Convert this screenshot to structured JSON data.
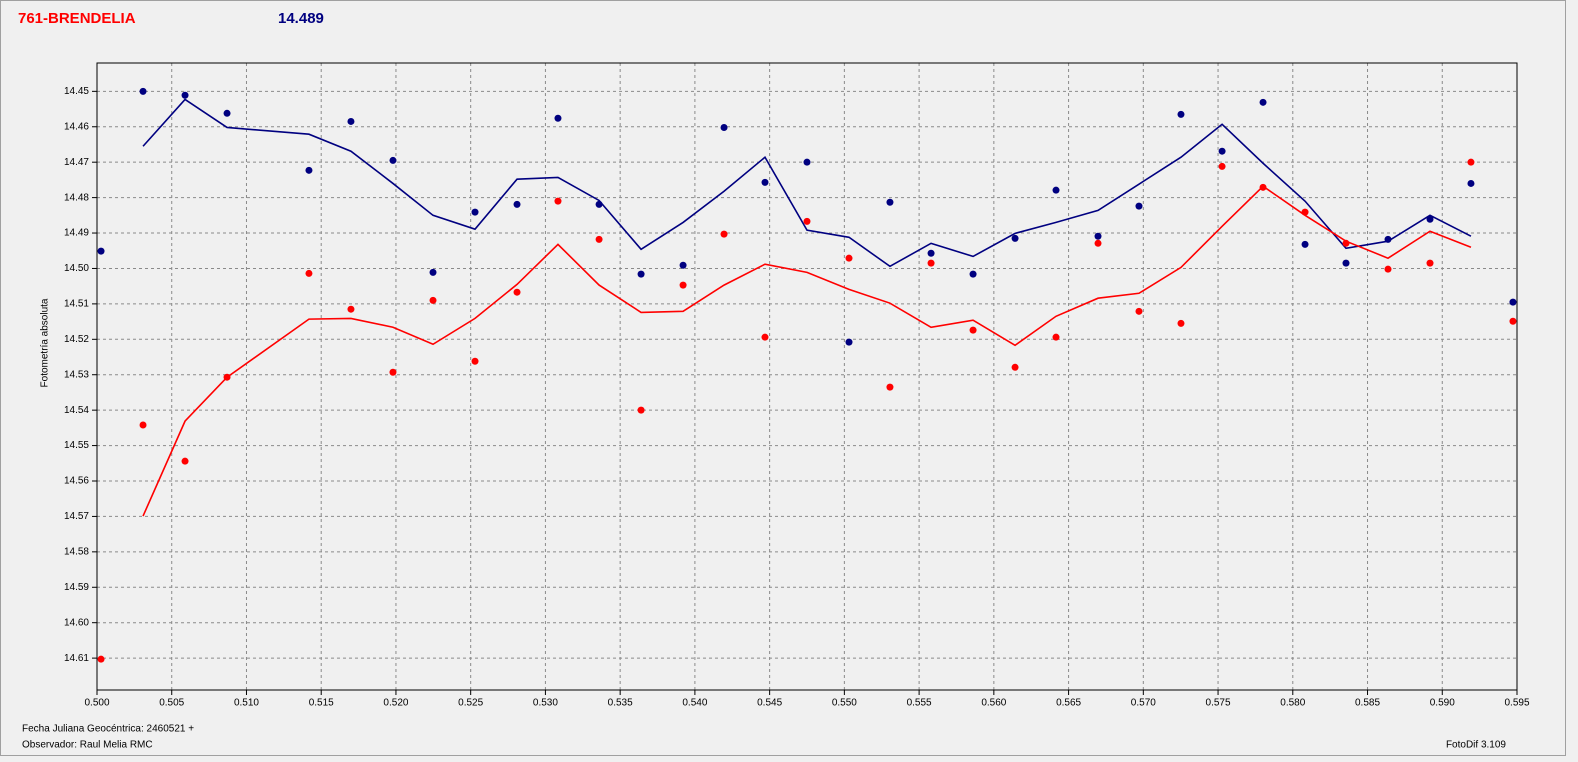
{
  "chart_data": {
    "type": "scatter",
    "title": "761-BRENDELIA",
    "subtitle": "14.489",
    "y_label": "Fotometría absoluta",
    "x_label": "Fecha Juliana Geocéntrica: 2460521 +",
    "observer": "Observador: Raul Melia RMC",
    "software": "FotoDif 3.109",
    "grid": true,
    "xlim": [
      0.5,
      0.595
    ],
    "ylim": [
      14.619,
      14.442
    ],
    "xticks": [
      {
        "value": 0.5,
        "label": "0.500"
      },
      0.505,
      {
        "value": 0.51,
        "label": "0.510"
      },
      0.515,
      {
        "value": 0.52,
        "label": "0.520"
      },
      0.525,
      {
        "value": 0.53,
        "label": "0.530"
      },
      0.535,
      {
        "value": 0.54,
        "label": "0.540"
      },
      0.545,
      {
        "value": 0.55,
        "label": "0.550"
      },
      0.555,
      {
        "value": 0.56,
        "label": "0.560"
      },
      0.565,
      {
        "value": 0.57,
        "label": "0.570"
      },
      0.575,
      {
        "value": 0.58,
        "label": "0.580"
      },
      0.585,
      {
        "value": 0.59,
        "label": "0.590"
      },
      0.595
    ],
    "yticks": [
      14.45,
      14.46,
      14.47,
      14.48,
      14.49,
      {
        "value": 14.5,
        "label": "14.50"
      },
      14.51,
      14.52,
      14.53,
      14.54,
      14.55,
      14.56,
      14.57,
      14.58,
      14.59,
      {
        "value": 14.6,
        "label": "14.60"
      },
      14.61
    ],
    "x": [
      0.50027,
      0.50308,
      0.50589,
      0.5087,
      0.51418,
      0.51699,
      0.5198,
      0.52248,
      0.52529,
      0.5281,
      0.53084,
      0.53359,
      0.5364,
      0.53921,
      0.54195,
      0.54469,
      0.5475,
      0.55031,
      0.55305,
      0.5558,
      0.55861,
      0.56142,
      0.56416,
      0.56697,
      0.56971,
      0.57252,
      0.57527,
      0.57801,
      0.58082,
      0.58356,
      0.58637,
      0.58918,
      0.59192,
      0.59473
    ],
    "series": [
      {
        "mode": "markers",
        "color": "#000080",
        "values": [
          14.4951,
          14.45,
          14.4511,
          14.4562,
          14.4723,
          14.4585,
          14.4695,
          14.5011,
          14.4841,
          14.4819,
          14.4576,
          14.4819,
          14.5016,
          14.4991,
          14.4602,
          14.4757,
          14.47,
          14.5208,
          14.4813,
          14.4957,
          14.5016,
          14.4915,
          14.4779,
          14.4909,
          14.4824,
          14.4565,
          14.4669,
          14.4531,
          14.4932,
          14.4985,
          14.4918,
          14.4861,
          14.476,
          14.5095
        ]
      },
      {
        "mode": "markers",
        "color": "#ff0000",
        "values": [
          14.6103,
          14.5442,
          14.5544,
          14.5307,
          14.5014,
          14.5115,
          14.5293,
          14.509,
          14.5262,
          14.5067,
          14.481,
          14.4918,
          14.54,
          14.5047,
          14.4903,
          14.5194,
          14.4867,
          14.4971,
          14.5335,
          14.4985,
          14.5174,
          14.5279,
          14.5194,
          14.4929,
          14.5121,
          14.5155,
          14.4712,
          14.4771,
          14.4841,
          14.4929,
          14.5002,
          14.4985,
          14.47,
          14.5149
        ]
      },
      {
        "mode": "line",
        "color": "#000080",
        "values": [
          null,
          14.4655,
          14.4523,
          14.4602,
          14.4621,
          14.4669,
          14.476,
          14.485,
          14.4889,
          14.4748,
          14.4743,
          14.4808,
          14.4946,
          14.487,
          14.4782,
          14.4686,
          14.4892,
          14.4912,
          14.4994,
          14.4929,
          14.4966,
          14.4901,
          14.487,
          14.4836,
          14.4762,
          14.4686,
          14.4593,
          14.4703,
          14.481,
          14.4943,
          14.4923,
          14.485,
          14.4909,
          null
        ]
      },
      {
        "mode": "line",
        "color": "#ff0000",
        "values": [
          null,
          14.5699,
          14.5431,
          14.5307,
          14.5143,
          14.5141,
          14.5166,
          14.5214,
          14.5141,
          14.5045,
          14.4932,
          14.5047,
          14.5124,
          14.5121,
          14.5047,
          14.4988,
          14.5011,
          14.5059,
          14.5098,
          14.5166,
          14.5146,
          14.5217,
          14.5135,
          14.5084,
          14.507,
          14.4997,
          14.4881,
          14.4768,
          14.485,
          14.4923,
          14.4971,
          14.4895,
          14.494,
          null
        ]
      }
    ]
  }
}
